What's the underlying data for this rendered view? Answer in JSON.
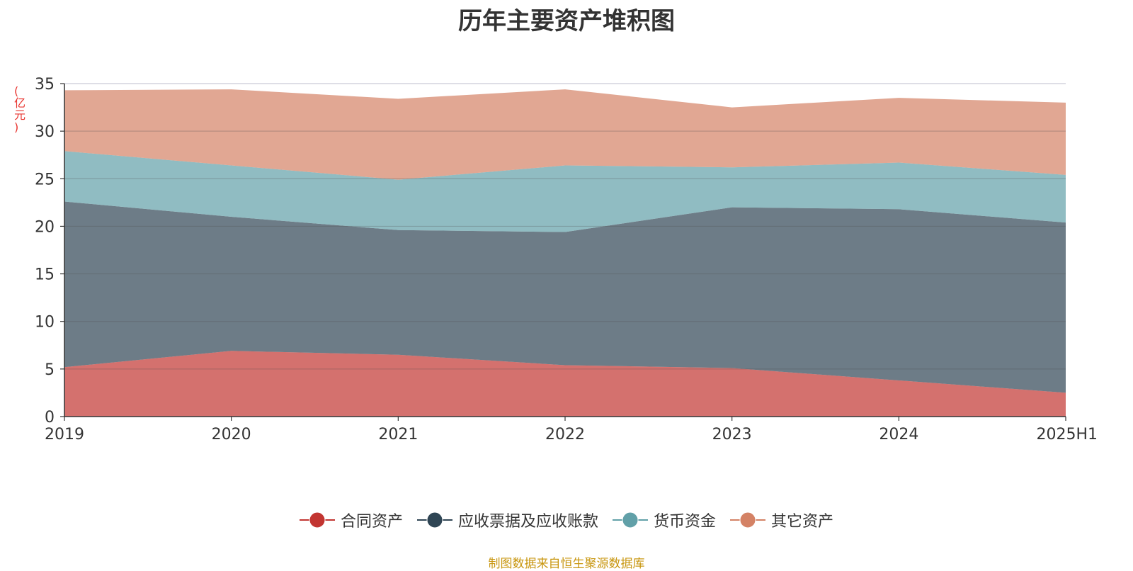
{
  "chart_data": {
    "type": "area",
    "stacked": true,
    "title": "历年主要资产堆积图",
    "ylabel": "(亿元)",
    "xlabel": "",
    "categories": [
      "2019",
      "2020",
      "2021",
      "2022",
      "2023",
      "2024",
      "2025H1"
    ],
    "ylim": [
      0,
      35
    ],
    "yticks": [
      0,
      5,
      10,
      15,
      20,
      25,
      30,
      35
    ],
    "grid": true,
    "legend_position": "bottom",
    "series": [
      {
        "name": "合同资产",
        "color": "#c23531",
        "values": [
          5.2,
          6.9,
          6.5,
          5.4,
          5.1,
          3.8,
          2.5
        ]
      },
      {
        "name": "应收票据及应收账款",
        "color": "#2f4554",
        "values": [
          17.4,
          14.1,
          13.1,
          14.0,
          16.9,
          18.0,
          17.9
        ]
      },
      {
        "name": "货币资金",
        "color": "#61a0a8",
        "values": [
          5.3,
          5.4,
          5.3,
          7.0,
          4.2,
          4.9,
          5.0
        ]
      },
      {
        "name": "其它资产",
        "color": "#d48265",
        "values": [
          6.4,
          8.0,
          8.5,
          8.0,
          6.3,
          6.8,
          7.6
        ]
      }
    ],
    "source": "制图数据来自恒生聚源数据库"
  }
}
